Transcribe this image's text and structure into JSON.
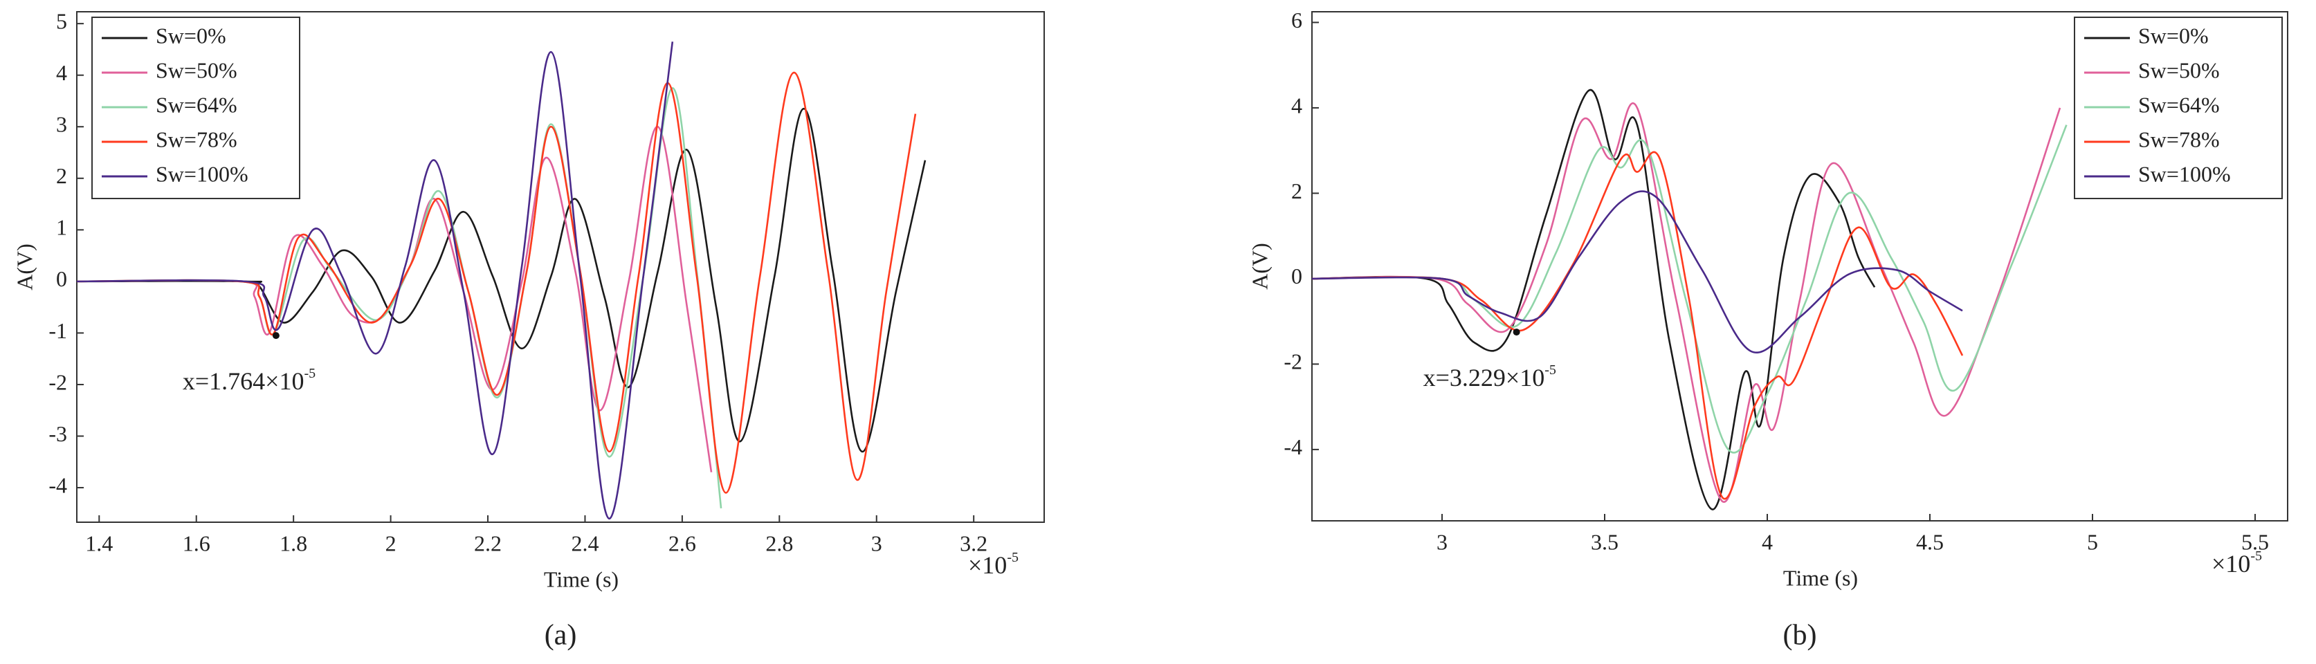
{
  "chart_data": [
    {
      "type": "line",
      "caption": "(a)",
      "x_label": "Time (s)",
      "y_label": "A(V)",
      "x_multiplier": {
        "base": "×10",
        "exponent": "-5"
      },
      "annotation": {
        "text": "x=1.764×10",
        "exponent": "-5",
        "x": 1.764,
        "y": -1.05
      },
      "legend": "upper left",
      "xlim": [
        1.354,
        3.345
      ],
      "ylim": [
        -4.67,
        5.23
      ],
      "xticks": [
        1.4,
        1.6,
        1.8,
        2,
        2.2,
        2.4,
        2.6,
        2.8,
        3,
        3.2
      ],
      "yticks": [
        -4,
        -3,
        -2,
        -1,
        0,
        1,
        2,
        3,
        4,
        5
      ],
      "series": [
        {
          "name": "Sw=0%",
          "color": "#1a1a1a",
          "x": [
            1.354,
            1.7,
            1.73,
            1.78,
            1.84,
            1.9,
            1.96,
            2.02,
            2.09,
            2.15,
            2.21,
            2.27,
            2.33,
            2.38,
            2.44,
            2.49,
            2.55,
            2.61,
            2.67,
            2.72,
            2.79,
            2.85,
            2.91,
            2.97,
            3.04,
            3.1
          ],
          "values": [
            0,
            0,
            -0.1,
            -0.8,
            -0.2,
            0.6,
            0.1,
            -0.8,
            0.2,
            1.35,
            0.1,
            -1.3,
            0.1,
            1.6,
            -0.3,
            -2.05,
            0.2,
            2.55,
            -0.5,
            -3.1,
            0.1,
            3.35,
            0.2,
            -3.3,
            -0.2,
            2.35
          ]
        },
        {
          "name": "Sw=50%",
          "color": "#e0609a",
          "x": [
            1.354,
            1.69,
            1.72,
            1.75,
            1.8,
            1.86,
            1.92,
            1.98,
            2.04,
            2.09,
            2.15,
            2.21,
            2.27,
            2.32,
            2.38,
            2.43,
            2.49,
            2.55,
            2.61,
            2.66
          ],
          "values": [
            0,
            0,
            -0.3,
            -1.0,
            0.85,
            0.3,
            -0.65,
            -0.7,
            0.3,
            1.6,
            -0.2,
            -2.1,
            0,
            2.4,
            0.2,
            -2.5,
            0,
            3.0,
            -0.5,
            -3.7
          ]
        },
        {
          "name": "Sw=64%",
          "color": "#8fd4a8",
          "x": [
            1.354,
            1.69,
            1.73,
            1.76,
            1.82,
            1.88,
            1.97,
            2.04,
            2.1,
            2.16,
            2.22,
            2.28,
            2.33,
            2.39,
            2.45,
            2.52,
            2.58,
            2.63,
            2.68
          ],
          "values": [
            0,
            0,
            -0.3,
            -1.0,
            0.8,
            0.2,
            -0.75,
            0.3,
            1.75,
            -0.2,
            -2.25,
            0.2,
            3.05,
            0.2,
            -3.4,
            0.1,
            3.75,
            0.2,
            -4.4
          ]
        },
        {
          "name": "Sw=78%",
          "color": "#ff3a1e",
          "x": [
            1.354,
            1.69,
            1.73,
            1.76,
            1.81,
            1.87,
            1.96,
            2.04,
            2.1,
            2.16,
            2.22,
            2.28,
            2.33,
            2.39,
            2.45,
            2.51,
            2.57,
            2.63,
            2.69,
            2.76,
            2.83,
            2.9,
            2.96,
            3.02,
            3.08
          ],
          "values": [
            0,
            0,
            -0.3,
            -1.0,
            0.85,
            0.35,
            -0.8,
            0.3,
            1.6,
            -0.2,
            -2.2,
            0.2,
            3.0,
            0.2,
            -3.3,
            0.1,
            3.85,
            0.1,
            -4.1,
            0.1,
            4.05,
            0.2,
            -3.85,
            -0.2,
            3.25
          ]
        },
        {
          "name": "Sw=100%",
          "color": "#4a2a8a",
          "x": [
            1.354,
            1.7,
            1.74,
            1.77,
            1.84,
            1.9,
            1.97,
            2.03,
            2.09,
            2.15,
            2.21,
            2.27,
            2.33,
            2.39,
            2.45,
            2.52,
            2.58
          ],
          "values": [
            0,
            0,
            -0.3,
            -0.9,
            1.0,
            0.1,
            -1.4,
            0.3,
            2.35,
            -0.2,
            -3.35,
            0.3,
            4.45,
            0.1,
            -4.6,
            0.1,
            4.65
          ]
        }
      ]
    },
    {
      "type": "line",
      "caption": "(b)",
      "x_label": "Time (s)",
      "y_label": "A(V)",
      "x_multiplier": {
        "base": "×10",
        "exponent": "-5"
      },
      "annotation": {
        "text": "x=3.229×10",
        "exponent": "-5",
        "x": 3.229,
        "y": -1.25
      },
      "legend": "upper right",
      "xlim": [
        2.6,
        5.6
      ],
      "ylim": [
        -5.67,
        6.25
      ],
      "xticks": [
        3,
        3.5,
        4,
        4.5,
        5,
        5.5
      ],
      "yticks": [
        -4,
        -2,
        0,
        2,
        4,
        6
      ],
      "series": [
        {
          "name": "Sw=0%",
          "color": "#1a1a1a",
          "x": [
            2.6,
            2.95,
            3.02,
            3.1,
            3.2,
            3.32,
            3.45,
            3.53,
            3.6,
            3.7,
            3.83,
            3.93,
            3.98,
            4.05,
            4.13,
            4.22,
            4.28,
            4.33
          ],
          "values": [
            0,
            0,
            -0.6,
            -1.5,
            -1.4,
            1.5,
            4.4,
            2.8,
            3.6,
            -1.5,
            -5.4,
            -2.2,
            -3.4,
            0.5,
            2.4,
            1.8,
            0.5,
            -0.2
          ]
        },
        {
          "name": "Sw=50%",
          "color": "#e0609a",
          "x": [
            2.6,
            2.98,
            3.08,
            3.2,
            3.32,
            3.43,
            3.52,
            3.6,
            3.72,
            3.86,
            3.96,
            4.02,
            4.1,
            4.2,
            4.35,
            4.45,
            4.55,
            4.7,
            4.9
          ],
          "values": [
            0,
            0,
            -0.6,
            -1.2,
            0.8,
            3.7,
            2.8,
            4.0,
            -0.5,
            -5.2,
            -2.5,
            -3.5,
            -0.5,
            2.7,
            0.3,
            -1.5,
            -3.2,
            -0.6,
            4.0
          ]
        },
        {
          "name": "Sw=64%",
          "color": "#8fd4a8",
          "x": [
            2.6,
            3.0,
            3.1,
            3.23,
            3.35,
            3.48,
            3.55,
            3.63,
            3.75,
            3.88,
            4.0,
            4.12,
            4.25,
            4.38,
            4.48,
            4.58,
            4.75,
            4.92
          ],
          "values": [
            0,
            0,
            -0.5,
            -1.1,
            0.6,
            3.0,
            2.6,
            3.1,
            -0.5,
            -4.0,
            -2.7,
            -0.5,
            2.0,
            0.5,
            -1.0,
            -2.6,
            0.3,
            3.6
          ]
        },
        {
          "name": "Sw=78%",
          "color": "#ff3a1e",
          "x": [
            2.6,
            3.0,
            3.12,
            3.25,
            3.4,
            3.55,
            3.6,
            3.67,
            3.76,
            3.86,
            3.96,
            4.03,
            4.08,
            4.18,
            4.28,
            4.38,
            4.45,
            4.52,
            4.6
          ],
          "values": [
            0,
            0,
            -0.5,
            -1.2,
            0.3,
            2.8,
            2.5,
            2.8,
            -0.5,
            -5.1,
            -3.0,
            -2.3,
            -2.4,
            -0.5,
            1.2,
            -0.2,
            0.1,
            -0.6,
            -1.8
          ]
        },
        {
          "name": "Sw=100%",
          "color": "#4a2a8a",
          "x": [
            2.6,
            3.0,
            3.08,
            3.18,
            3.3,
            3.42,
            3.55,
            3.66,
            3.8,
            3.95,
            4.1,
            4.25,
            4.4,
            4.5,
            4.6
          ],
          "values": [
            0,
            0,
            -0.4,
            -0.8,
            -0.9,
            0.5,
            1.8,
            1.9,
            0.2,
            -1.7,
            -0.9,
            0.1,
            0.2,
            -0.3,
            -0.75
          ]
        }
      ]
    }
  ]
}
